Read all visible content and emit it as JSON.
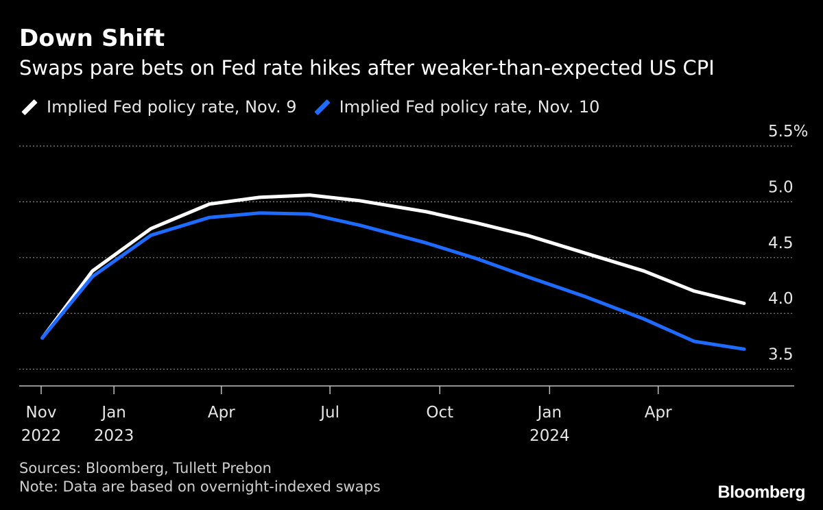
{
  "header": {
    "title": "Down Shift",
    "subtitle": "Swaps pare bets on Fed rate hikes after weaker-than-expected US CPI"
  },
  "footer": {
    "sources": "Sources: Bloomberg, Tullett Prebon",
    "note": "Note: Data are based on overnight-indexed swaps",
    "logo": "Bloomberg"
  },
  "colors": {
    "background": "#000000",
    "series_white": "#ffffff",
    "series_blue": "#1e6bff",
    "grid": "#8a8a8a",
    "axis": "#bfbfbf",
    "tick_text": "#e6e6e6"
  },
  "chart_data": {
    "type": "line",
    "title": "Down Shift",
    "subtitle": "Swaps pare bets on Fed rate hikes after weaker-than-expected US CPI",
    "xlabel": "",
    "ylabel": "",
    "y_unit": "%",
    "ylim": [
      3.35,
      5.5
    ],
    "y_ticks": [
      {
        "value": 5.5,
        "label": "5.5%"
      },
      {
        "value": 5.0,
        "label": "5.0"
      },
      {
        "value": 4.5,
        "label": "4.5"
      },
      {
        "value": 4.0,
        "label": "4.0"
      },
      {
        "value": 3.5,
        "label": "3.5"
      }
    ],
    "grid": true,
    "legend_position": "top-left",
    "x_ticks": [
      {
        "date": "2022-11-01",
        "label": "Nov",
        "label2": "2022"
      },
      {
        "date": "2023-01-01",
        "label": "Jan",
        "label2": "2023"
      },
      {
        "date": "2023-04-01",
        "label": "Apr",
        "label2": ""
      },
      {
        "date": "2023-07-01",
        "label": "Jul",
        "label2": ""
      },
      {
        "date": "2023-10-01",
        "label": "Oct",
        "label2": ""
      },
      {
        "date": "2024-01-01",
        "label": "Jan",
        "label2": "2024"
      },
      {
        "date": "2024-04-01",
        "label": "Apr",
        "label2": ""
      }
    ],
    "x": [
      "2022-11-02",
      "2022-12-14",
      "2023-02-01",
      "2023-03-22",
      "2023-05-03",
      "2023-06-14",
      "2023-07-26",
      "2023-09-20",
      "2023-11-01",
      "2023-12-13",
      "2024-01-31",
      "2024-03-20",
      "2024-05-01",
      "2024-06-12"
    ],
    "series": [
      {
        "name": "Implied Fed policy rate, Nov. 9",
        "color": "#ffffff",
        "values": [
          3.78,
          4.38,
          4.76,
          4.98,
          5.04,
          5.06,
          5.01,
          4.91,
          4.81,
          4.7,
          4.54,
          4.38,
          4.2,
          4.09
        ]
      },
      {
        "name": "Implied Fed policy rate, Nov. 10",
        "color": "#1e6bff",
        "values": [
          3.78,
          4.33,
          4.7,
          4.86,
          4.9,
          4.89,
          4.79,
          4.63,
          4.49,
          4.33,
          4.15,
          3.95,
          3.75,
          3.68
        ]
      }
    ]
  }
}
